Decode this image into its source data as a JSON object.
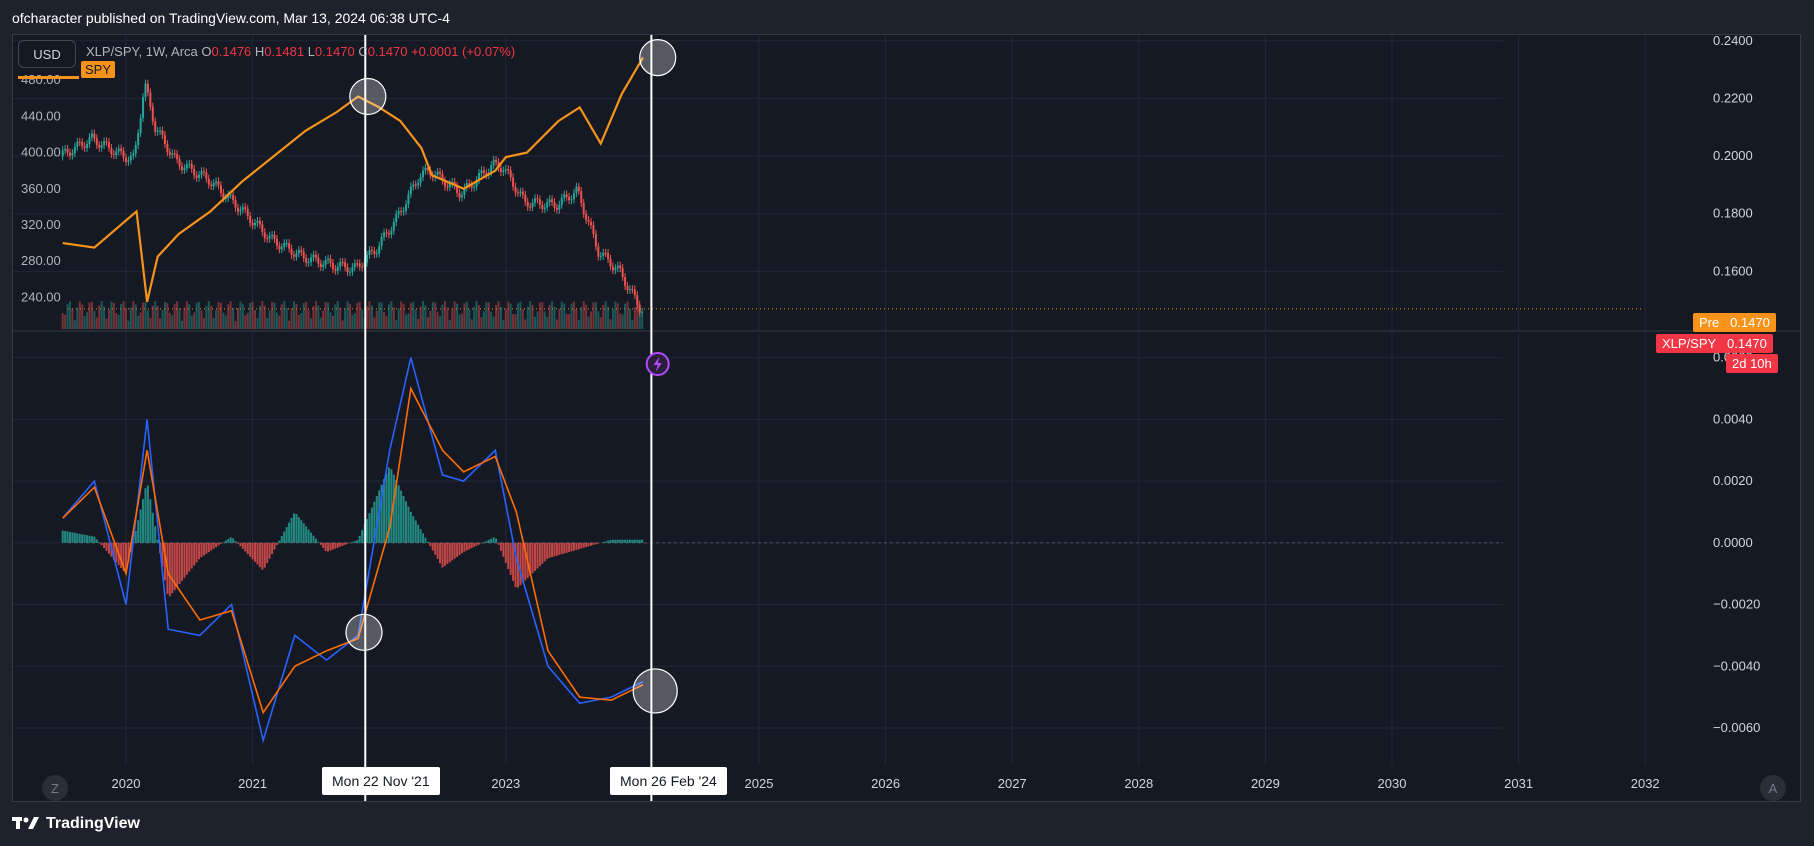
{
  "header": {
    "published": "ofcharacter published on TradingView.com, Mar 13, 2024 06:38 UTC-4"
  },
  "footer": {
    "brand": "TradingView",
    "logo_icon": "tradingview-logo-icon"
  },
  "legend": {
    "currency_button": "USD",
    "symbol": "XLP/SPY, 1W, Arca",
    "o_label": "O",
    "o_value": "0.1476",
    "h_label": "H",
    "h_value": "0.1481",
    "l_label": "L",
    "l_value": "0.1470",
    "c_label": "C",
    "c_value": "0.1470",
    "change": "+0.0001 (+0.07%)",
    "overlay_tag": "SPY"
  },
  "price_tags": {
    "pre_label": "Pre",
    "pre_value": "0.1470",
    "symbol_label": "XLP/SPY",
    "symbol_value": "0.1470",
    "countdown": "2d 10h"
  },
  "crosshair_dates": [
    "Mon 22 Nov '21",
    "Mon 26 Feb '24"
  ],
  "corner_buttons": {
    "left": "Z",
    "right": "A"
  },
  "colors": {
    "background": "#151924",
    "spy": "#f7931a",
    "macd": "#2962ff",
    "signal": "#ff6d00",
    "up": "#26a69a",
    "down": "#ef5350",
    "red_tag": "#f23645"
  },
  "chart_data": [
    {
      "type": "line",
      "title": "XLP/SPY, 1W, Arca",
      "x_ticks": [
        "2020",
        "2021",
        "2023",
        "2025",
        "2026",
        "2027",
        "2028",
        "2029",
        "2030",
        "2031",
        "2032"
      ],
      "right_axis_ticks": [
        "0.2400",
        "0.2200",
        "0.2000",
        "0.1800",
        "0.1600"
      ],
      "left_axis_ticks": [
        "480.00",
        "440.00",
        "400.00",
        "360.00",
        "320.00",
        "280.00",
        "240.00"
      ],
      "right_axis_range": [
        0.14,
        0.242
      ],
      "left_axis_range": [
        205,
        530
      ],
      "series": [
        {
          "name": "XLP/SPY",
          "x": [
            "2019-07",
            "2019-10",
            "2020-01",
            "2020-02",
            "2020-03",
            "2020-04",
            "2020-06",
            "2020-09",
            "2020-12",
            "2021-03",
            "2021-06",
            "2021-09",
            "2021-11",
            "2022-01",
            "2022-03",
            "2022-05",
            "2022-06",
            "2022-09",
            "2022-12",
            "2023-01",
            "2023-03",
            "2023-06",
            "2023-08",
            "2023-10",
            "2023-12",
            "2024-02"
          ],
          "values": [
            0.2,
            0.206,
            0.2,
            0.199,
            0.225,
            0.21,
            0.198,
            0.192,
            0.182,
            0.171,
            0.165,
            0.162,
            0.161,
            0.168,
            0.179,
            0.193,
            0.195,
            0.187,
            0.197,
            0.196,
            0.184,
            0.183,
            0.188,
            0.167,
            0.16,
            0.147
          ]
        },
        {
          "name": "SPY",
          "x": [
            "2019-07",
            "2019-10",
            "2020-01",
            "2020-02",
            "2020-03",
            "2020-04",
            "2020-06",
            "2020-09",
            "2020-12",
            "2021-03",
            "2021-06",
            "2021-09",
            "2021-11",
            "2022-01",
            "2022-03",
            "2022-05",
            "2022-06",
            "2022-09",
            "2022-12",
            "2023-01",
            "2023-03",
            "2023-06",
            "2023-08",
            "2023-10",
            "2023-12",
            "2024-02"
          ],
          "values": [
            300,
            295,
            325,
            335,
            235,
            285,
            310,
            335,
            368,
            396,
            424,
            445,
            462,
            450,
            435,
            405,
            375,
            360,
            380,
            395,
            400,
            435,
            450,
            410,
            465,
            505
          ]
        }
      ]
    },
    {
      "type": "line",
      "title": "MACD",
      "right_axis_ticks": [
        "0.0060",
        "0.0040",
        "0.0020",
        "0.0000",
        "−0.0020",
        "−0.0040",
        "−0.0060"
      ],
      "y_range": [
        -0.0072,
        0.0068
      ],
      "x": [
        "2019-07",
        "2019-10",
        "2020-01",
        "2020-03",
        "2020-05",
        "2020-08",
        "2020-11",
        "2021-02",
        "2021-05",
        "2021-08",
        "2021-11",
        "2022-02",
        "2022-04",
        "2022-07",
        "2022-09",
        "2022-12",
        "2023-02",
        "2023-05",
        "2023-08",
        "2023-11",
        "2024-02"
      ],
      "series": [
        {
          "name": "MACD",
          "values": [
            0.0008,
            0.002,
            -0.002,
            0.004,
            -0.0028,
            -0.003,
            -0.002,
            -0.0064,
            -0.003,
            -0.0038,
            -0.003,
            0.003,
            0.006,
            0.0022,
            0.002,
            0.003,
            -0.0005,
            -0.004,
            -0.0052,
            -0.005,
            -0.0045
          ]
        },
        {
          "name": "Signal",
          "values": [
            0.0008,
            0.0018,
            -0.001,
            0.003,
            -0.001,
            -0.0025,
            -0.0022,
            -0.0055,
            -0.004,
            -0.0035,
            -0.0031,
            0.0005,
            0.005,
            0.003,
            0.0023,
            0.0028,
            0.001,
            -0.0035,
            -0.005,
            -0.0051,
            -0.0046
          ]
        }
      ],
      "histogram": [
        0.0004,
        0.0002,
        -0.001,
        0.002,
        -0.0018,
        -0.0005,
        0.0002,
        -0.0009,
        0.001,
        -0.0003,
        0.0001,
        0.0025,
        0.001,
        -0.0008,
        -0.0003,
        0.0002,
        -0.0015,
        -0.0005,
        -0.0002,
        0.0001,
        0.0001
      ]
    }
  ]
}
